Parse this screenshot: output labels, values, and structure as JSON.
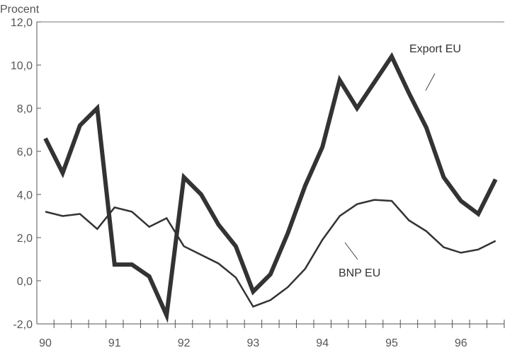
{
  "chart_data": {
    "type": "line",
    "title": "",
    "ylabel": "Procent",
    "xlabel": "",
    "ylim": [
      -2,
      12
    ],
    "yticks": [
      "-2,0",
      "0,0",
      "2,0",
      "4,0",
      "6,0",
      "8,0",
      "10,0",
      "12,0"
    ],
    "ytick_values": [
      -2,
      0,
      2,
      4,
      6,
      8,
      10,
      12
    ],
    "xtick_labels": [
      "90",
      "91",
      "92",
      "93",
      "94",
      "95",
      "96"
    ],
    "x_quarters": 27,
    "series": [
      {
        "name": "Export EU",
        "color": "#333333",
        "values": [
          6.6,
          5.0,
          7.2,
          8.0,
          0.75,
          0.75,
          0.2,
          -1.6,
          4.8,
          4.0,
          2.6,
          1.6,
          -0.5,
          0.3,
          2.2,
          4.4,
          6.2,
          9.3,
          8.0,
          9.2,
          10.4,
          8.7,
          7.1,
          4.8,
          3.7,
          3.1,
          4.7
        ]
      },
      {
        "name": "BNP EU",
        "color": "#333333",
        "values": [
          3.2,
          3.0,
          3.1,
          2.4,
          3.4,
          3.2,
          2.5,
          2.9,
          1.6,
          1.2,
          0.8,
          0.15,
          -1.2,
          -0.9,
          -0.3,
          0.55,
          1.9,
          3.0,
          3.55,
          3.75,
          3.7,
          2.8,
          2.3,
          1.55,
          1.3,
          1.45,
          1.85
        ]
      }
    ],
    "grid": false,
    "legend": "inline-annotations"
  }
}
